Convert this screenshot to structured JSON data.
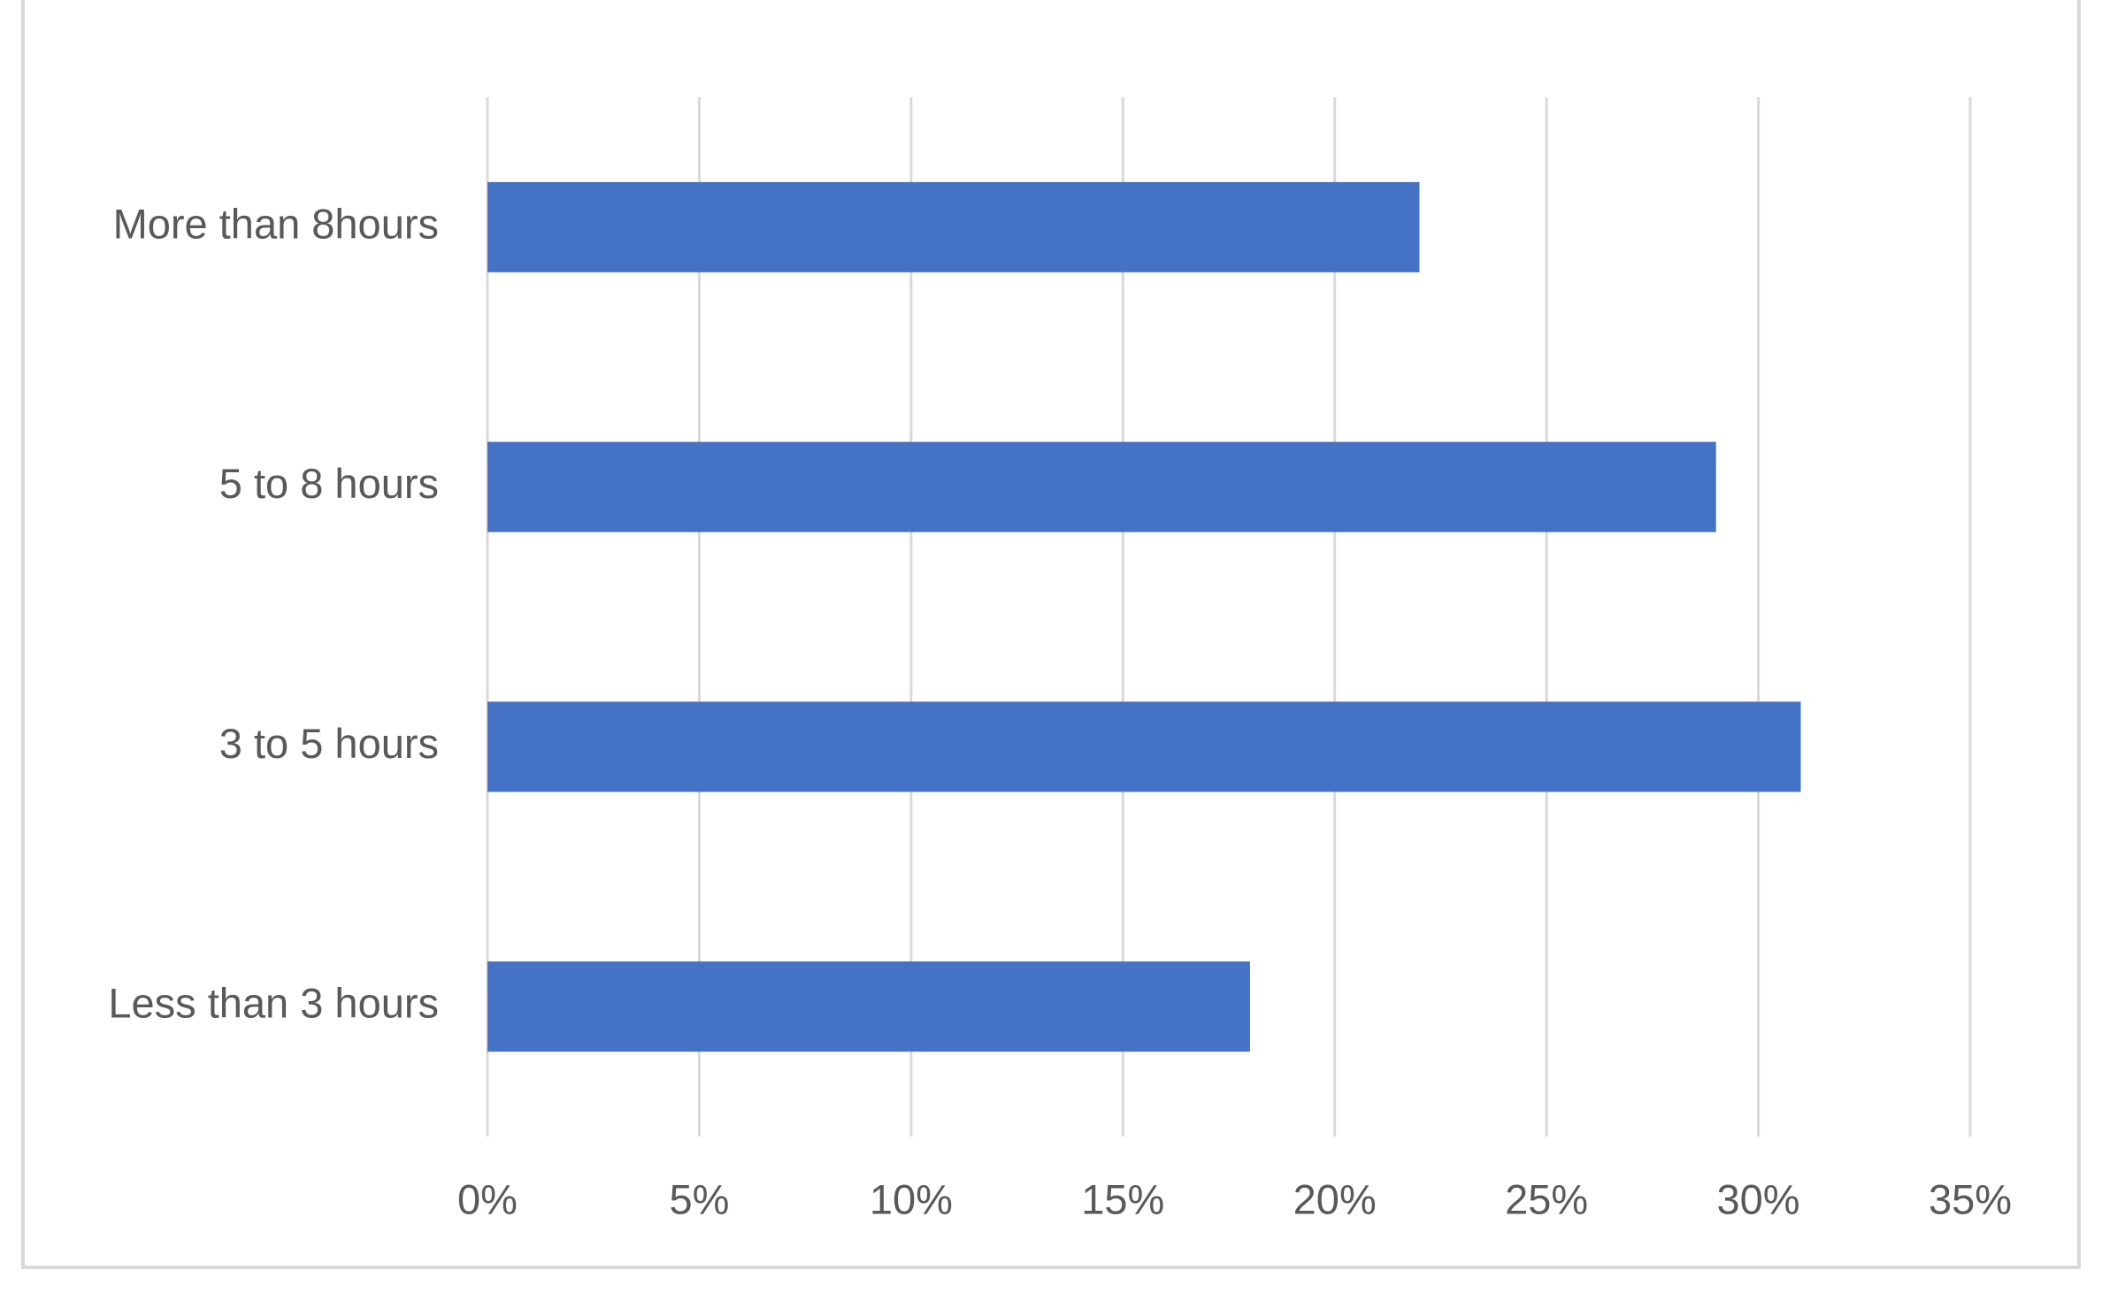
{
  "chart_data": {
    "type": "hbar",
    "categories": [
      "More than 8hours",
      "5 to 8 hours",
      "3 to 5 hours",
      "Less than 3 hours"
    ],
    "values": [
      22,
      29,
      31,
      18
    ],
    "color": "#4472c4",
    "xlim": [
      0,
      35
    ],
    "xticks": [
      {
        "value": 0,
        "label": "0%"
      },
      {
        "value": 5,
        "label": "5%"
      },
      {
        "value": 10,
        "label": "10%"
      },
      {
        "value": 15,
        "label": "15%"
      },
      {
        "value": 20,
        "label": "20%"
      },
      {
        "value": 25,
        "label": "25%"
      },
      {
        "value": 30,
        "label": "30%"
      },
      {
        "value": 35,
        "label": "35%"
      }
    ],
    "grid": true
  }
}
